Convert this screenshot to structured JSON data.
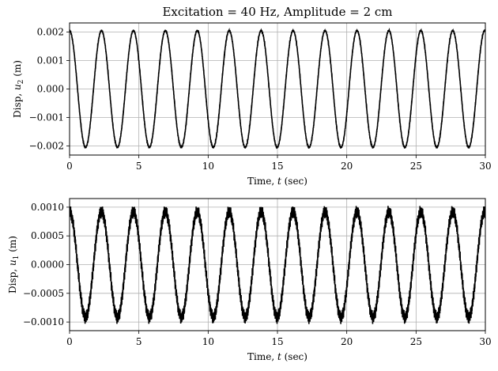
{
  "chart_data": [
    {
      "type": "line",
      "title": "Excitation = 40 Hz, Amplitude = 2 cm",
      "xlabel": "Time, t (sec)",
      "ylabel": "Disp, u2 (m)",
      "xlim": [
        0,
        30
      ],
      "ylim": [
        -0.00232,
        0.00232
      ],
      "grid": true,
      "xticks": [
        0,
        5,
        10,
        15,
        20,
        25,
        30
      ],
      "xtick_labels": [
        "0",
        "5",
        "10",
        "15",
        "20",
        "25",
        "30"
      ],
      "yticks": [
        -0.002,
        -0.001,
        0.0,
        0.001,
        0.002
      ],
      "ytick_labels": [
        "−0.002",
        "−0.001",
        "0.000",
        "0.001",
        "0.002"
      ],
      "series": [
        {
          "color": "#000000",
          "waveform": {
            "amplitude": 0.00205,
            "frequency_hz": 0.434,
            "phase_rad": 1.57,
            "ripple_amplitude": 3e-05,
            "ripple_frequency_hz": 40
          }
        }
      ]
    },
    {
      "type": "line",
      "title": "",
      "xlabel": "Time, t (sec)",
      "ylabel": "Disp, u1 (m)",
      "xlim": [
        0,
        30
      ],
      "ylim": [
        -0.00115,
        0.00115
      ],
      "grid": true,
      "xticks": [
        0,
        5,
        10,
        15,
        20,
        25,
        30
      ],
      "xtick_labels": [
        "0",
        "5",
        "10",
        "15",
        "20",
        "25",
        "30"
      ],
      "yticks": [
        -0.001,
        -0.0005,
        0.0,
        0.0005,
        0.001
      ],
      "ytick_labels": [
        "−0.0010",
        "−0.0005",
        "0.0000",
        "0.0005",
        "0.0010"
      ],
      "series": [
        {
          "color": "#000000",
          "waveform": {
            "amplitude": 0.00092,
            "frequency_hz": 0.434,
            "phase_rad": 1.57,
            "ripple_amplitude": 8e-05,
            "ripple_frequency_hz": 40
          }
        }
      ]
    }
  ]
}
